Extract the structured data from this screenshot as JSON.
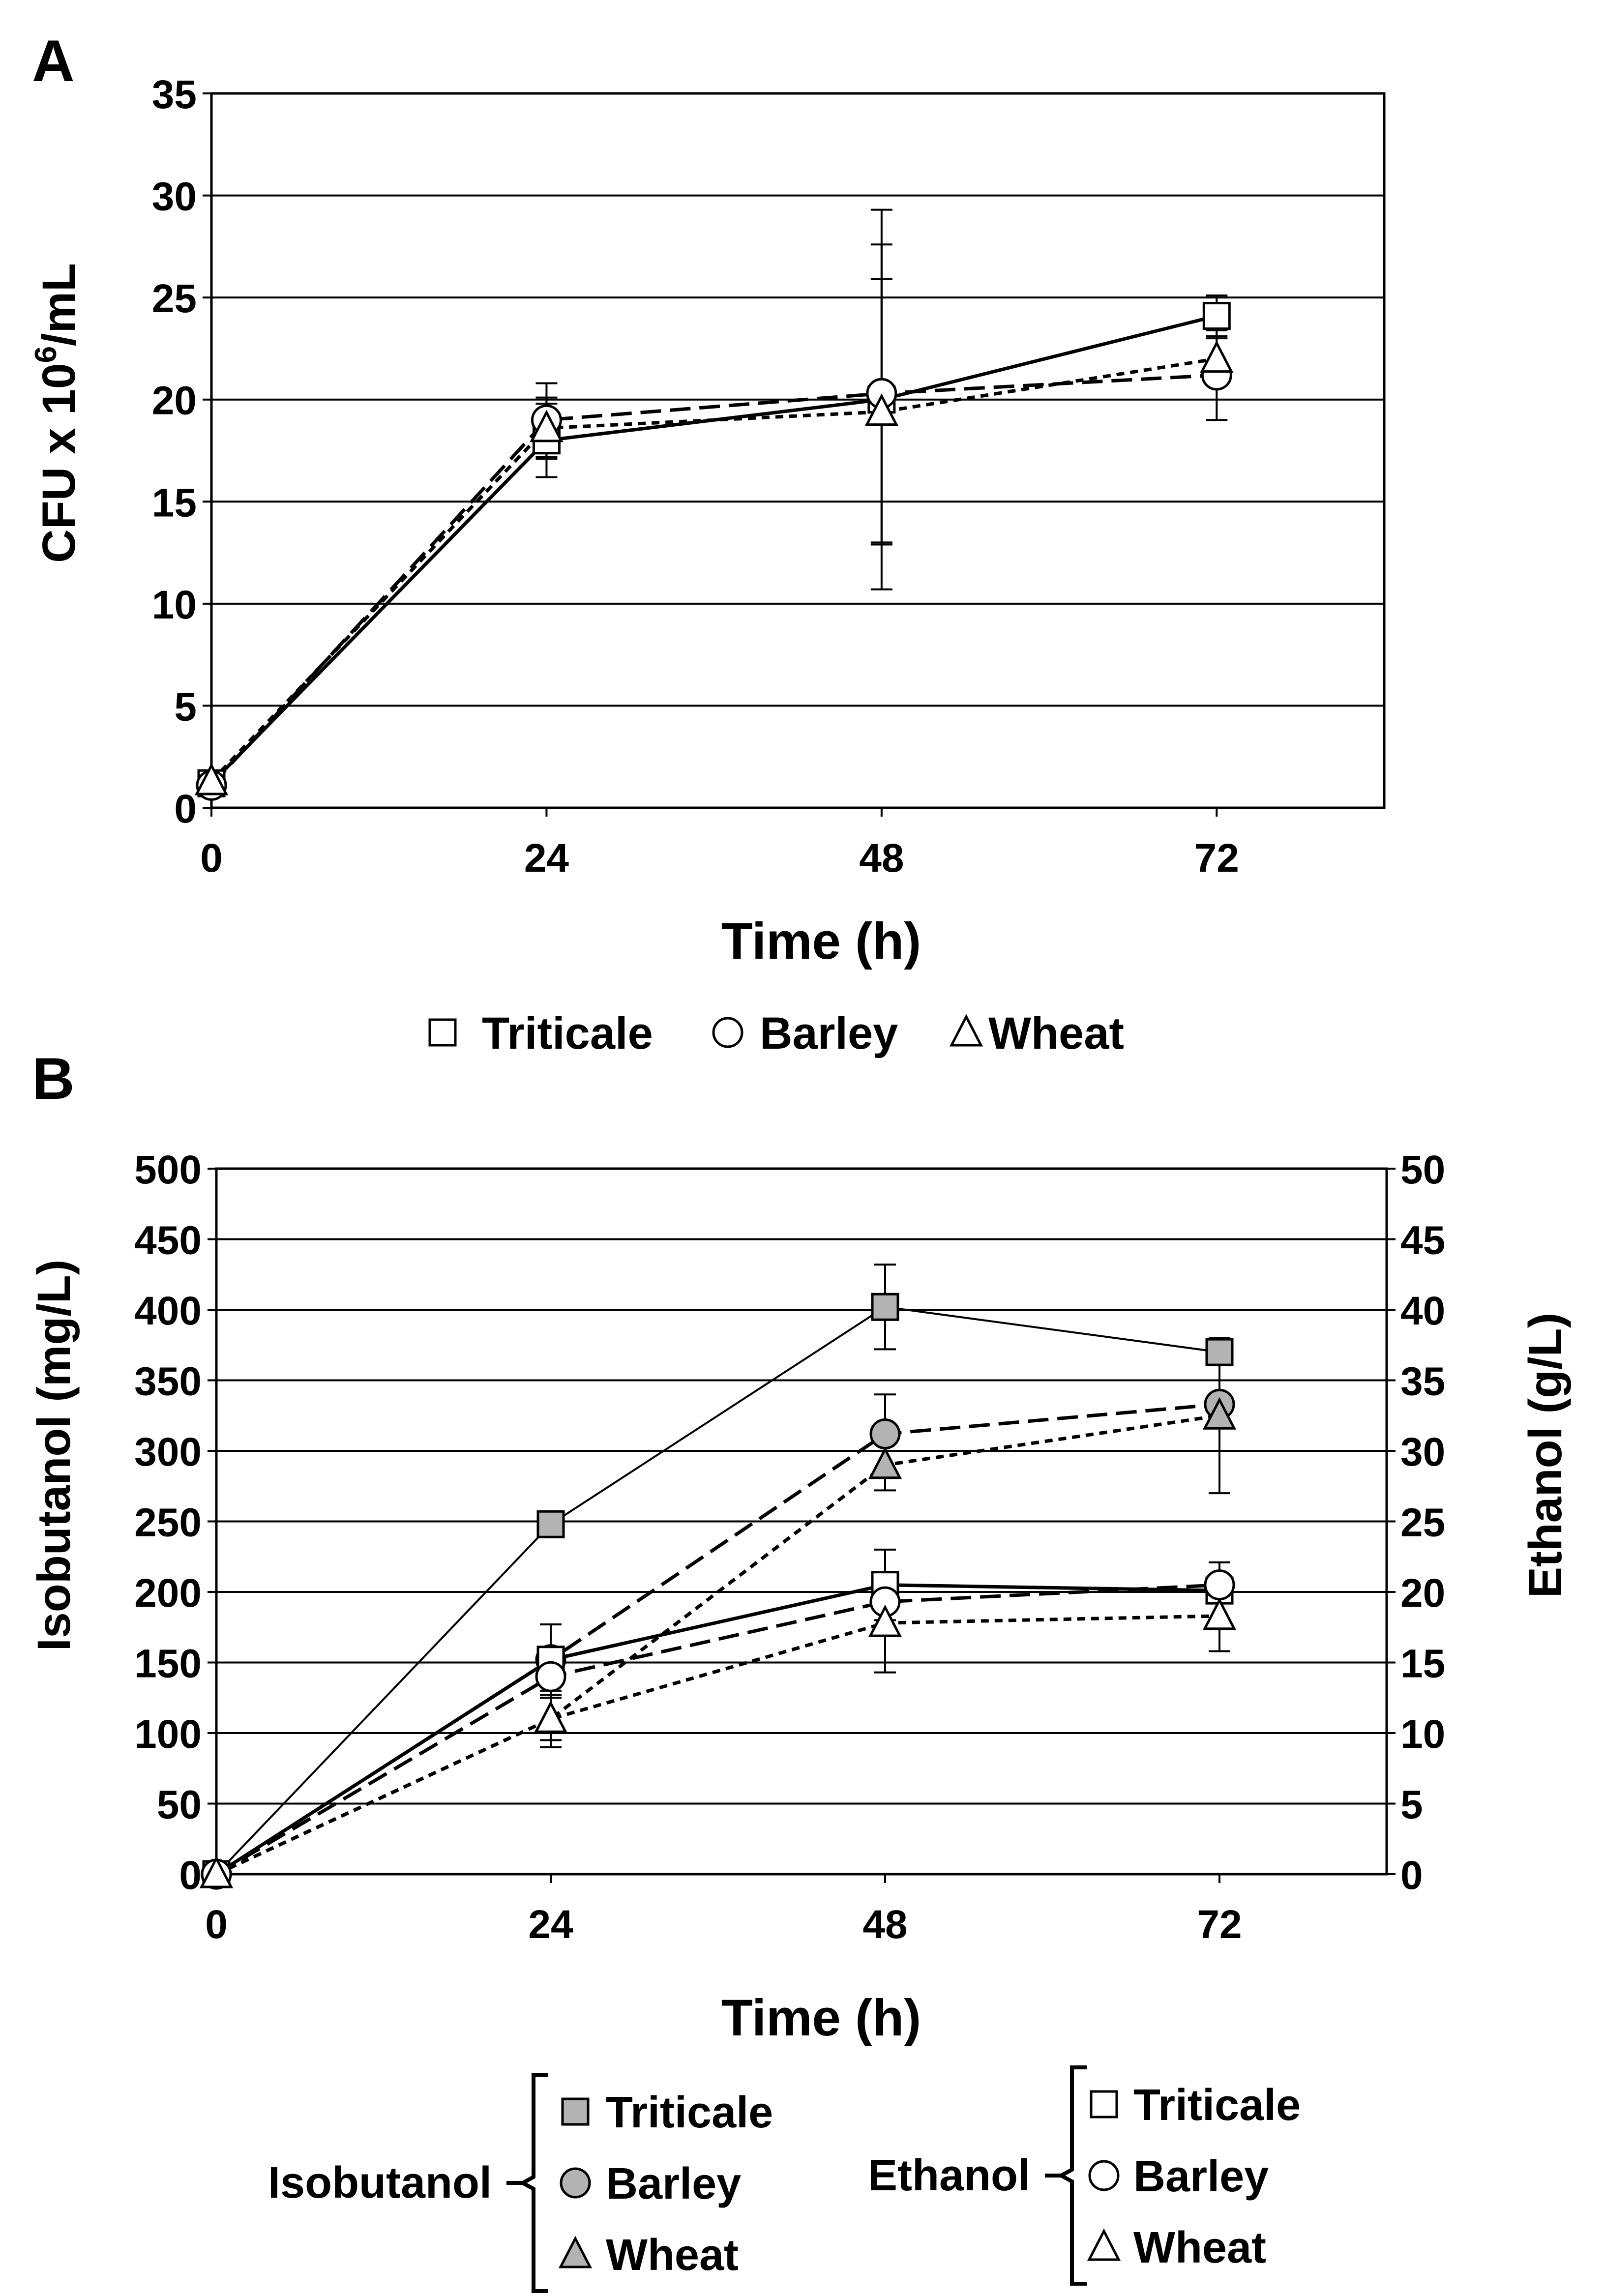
{
  "chart_data": [
    {
      "panel": "A",
      "type": "line",
      "xlabel": "Time (h)",
      "ylabel": "CFU x 10",
      "ylabel_exponent": "6",
      "ylabel_suffix": "/mL",
      "x": [
        0,
        24,
        48,
        72
      ],
      "xlim": [
        0,
        84
      ],
      "ylim": [
        0,
        35
      ],
      "yticks": [
        0,
        5,
        10,
        15,
        20,
        25,
        30,
        35
      ],
      "xticks": [
        0,
        24,
        48,
        72
      ],
      "grid": true,
      "legend": [
        "Triticale",
        "Barley",
        "Wheat"
      ],
      "series": [
        {
          "name": "Triticale",
          "marker": "square",
          "fill": "#ffffff",
          "line": "solid",
          "values": [
            1.2,
            18.0,
            20.0,
            24.1
          ],
          "errors": [
            0.2,
            1.8,
            9.3,
            1.0
          ]
        },
        {
          "name": "Barley",
          "marker": "circle",
          "fill": "#ffffff",
          "line": "longdash",
          "values": [
            1.1,
            19.0,
            20.3,
            21.2
          ],
          "errors": [
            0.2,
            1.8,
            7.3,
            2.2
          ]
        },
        {
          "name": "Wheat",
          "marker": "triangle",
          "fill": "#ffffff",
          "line": "shortdash",
          "values": [
            1.3,
            18.6,
            19.4,
            22.0
          ],
          "errors": [
            0.2,
            1.5,
            6.5,
            1.0
          ]
        }
      ]
    },
    {
      "panel": "B",
      "type": "line",
      "xlabel": "Time (h)",
      "ylabel": "Isobutanol (mg/L)",
      "ylabel_right": "Ethanol (g/L)",
      "x": [
        0,
        24,
        48,
        72
      ],
      "xlim": [
        0,
        84
      ],
      "ylim": [
        0,
        500
      ],
      "ylim_right": [
        0,
        50
      ],
      "yticks": [
        0,
        50,
        100,
        150,
        200,
        250,
        300,
        350,
        400,
        450,
        500
      ],
      "yticks_right": [
        0,
        5,
        10,
        15,
        20,
        25,
        30,
        35,
        40,
        45,
        50
      ],
      "xticks": [
        0,
        24,
        48,
        72
      ],
      "grid": true,
      "legend_groups": [
        {
          "label": "Isobutanol",
          "entries": [
            "Triticale",
            "Barley",
            "Wheat"
          ],
          "marker_fill": "#b3b3b3"
        },
        {
          "label": "Ethanol",
          "entries": [
            "Triticale",
            "Barley",
            "Wheat"
          ],
          "marker_fill": "#ffffff"
        }
      ],
      "series": [
        {
          "name": "Isobutanol Triticale",
          "axis": "left",
          "marker": "square",
          "fill": "#b3b3b3",
          "line": "thin",
          "values": [
            0,
            248,
            402,
            370
          ],
          "errors": [
            0,
            0,
            30,
            0
          ]
        },
        {
          "name": "Isobutanol Barley",
          "axis": "left",
          "marker": "circle",
          "fill": "#b3b3b3",
          "line": "longdash",
          "values": [
            0,
            152,
            312,
            333
          ],
          "errors": [
            0,
            0,
            28,
            0
          ]
        },
        {
          "name": "Isobutanol Wheat",
          "axis": "left",
          "marker": "triangle",
          "fill": "#b3b3b3",
          "line": "shortdash",
          "values": [
            0,
            110,
            290,
            325
          ],
          "errors": [
            0,
            15,
            18,
            55
          ]
        },
        {
          "name": "Ethanol Triticale",
          "axis": "right",
          "marker": "square",
          "fill": "#ffffff",
          "line": "solid",
          "values": [
            0,
            15.2,
            20.5,
            20.1
          ],
          "errors": [
            0,
            2.5,
            2.5,
            2.0
          ]
        },
        {
          "name": "Ethanol Barley",
          "axis": "right",
          "marker": "circle",
          "fill": "#ffffff",
          "line": "longdash",
          "values": [
            0,
            14.0,
            19.3,
            20.5
          ],
          "errors": [
            0,
            0,
            0,
            0
          ]
        },
        {
          "name": "Ethanol Wheat",
          "axis": "right",
          "marker": "triangle",
          "fill": "#ffffff",
          "line": "shortdash",
          "values": [
            0,
            11.0,
            17.8,
            18.3
          ],
          "errors": [
            0,
            2.0,
            3.5,
            2.5
          ]
        }
      ]
    }
  ]
}
